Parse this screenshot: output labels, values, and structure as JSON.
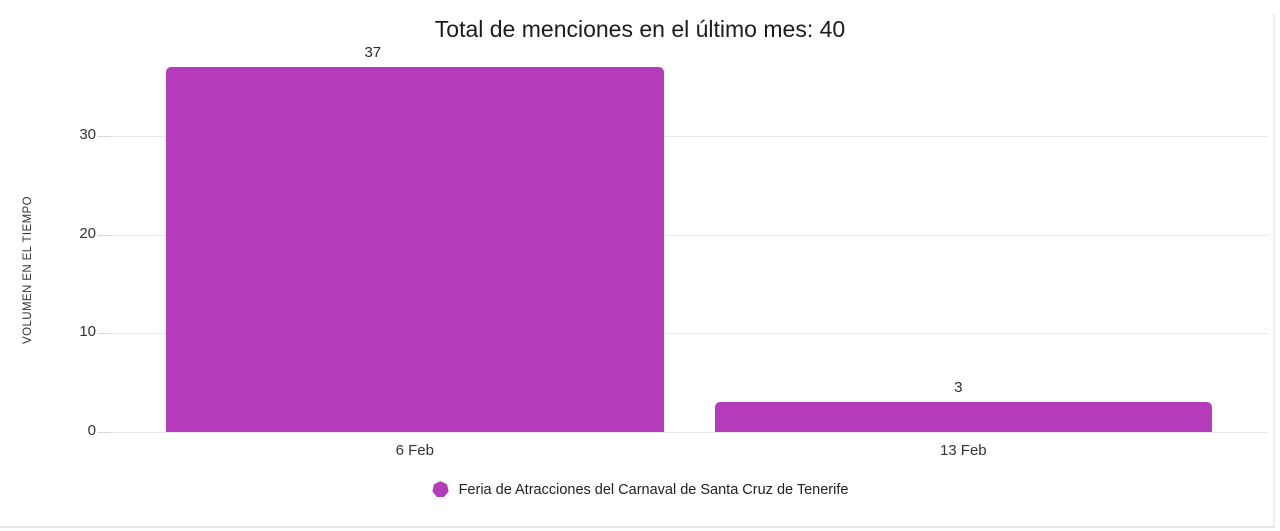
{
  "chart_data": {
    "type": "bar",
    "title": "Total de menciones en el último mes: 40",
    "categories": [
      "6 Feb",
      "13 Feb"
    ],
    "values": [
      37,
      3
    ],
    "value_labels": [
      "37",
      "3"
    ],
    "series": [
      {
        "name": "Feria de Atracciones del Carnaval de Santa Cruz de Tenerife",
        "values": [
          37,
          3
        ]
      }
    ],
    "total_mentions": 40,
    "xlabel": "",
    "ylabel": "VOLUMEN EN EL TIEMPO",
    "yticks": [
      0,
      10,
      20,
      30
    ],
    "ylim": [
      0,
      37
    ],
    "grid": true,
    "legend_position": "bottom",
    "bar_color": "#b43cba"
  },
  "legend": {
    "label": "Feria de Atracciones del Carnaval de Santa Cruz de Tenerife",
    "marker_color": "#b43cba",
    "marker_shape": "heptagon"
  },
  "colors": {
    "bar": "#b43cba",
    "grid": "#e8e8e8",
    "tick": "#d7d7d7",
    "axis_text": "#333333",
    "title_text": "#1c1c1c",
    "card_edge": "#e2e7eb"
  }
}
